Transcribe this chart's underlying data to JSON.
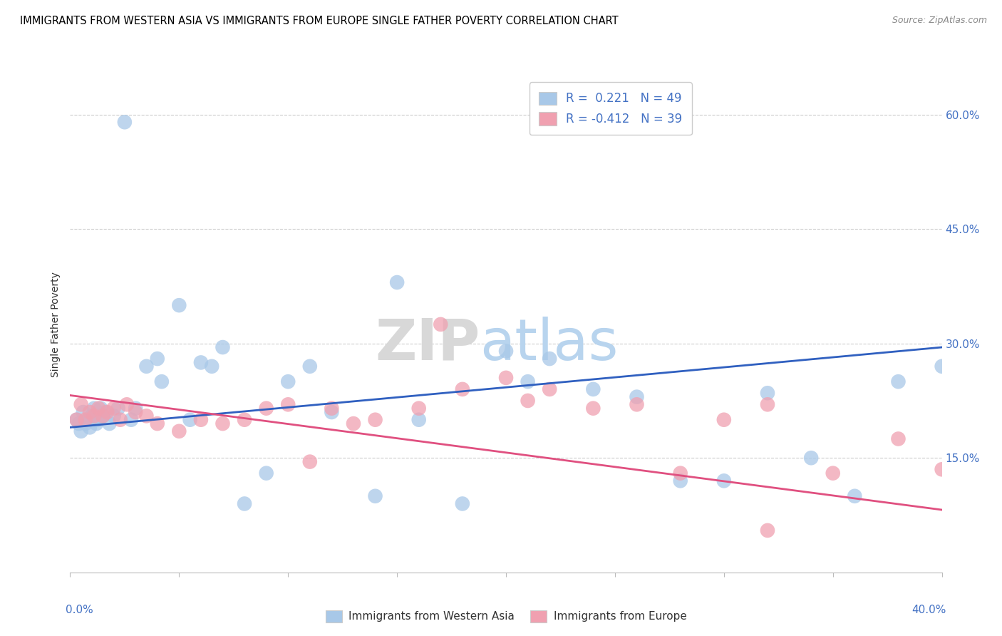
{
  "title": "IMMIGRANTS FROM WESTERN ASIA VS IMMIGRANTS FROM EUROPE SINGLE FATHER POVERTY CORRELATION CHART",
  "source": "Source: ZipAtlas.com",
  "ylabel": "Single Father Poverty",
  "ytick_vals": [
    0.15,
    0.3,
    0.45,
    0.6
  ],
  "xrange": [
    0.0,
    0.4
  ],
  "yrange": [
    0.0,
    0.65
  ],
  "legend_blue_R": "R =  0.221",
  "legend_blue_N": "N = 49",
  "legend_pink_R": "R = -0.412",
  "legend_pink_N": "N = 39",
  "color_blue": "#A8C8E8",
  "color_pink": "#F0A0B0",
  "color_blue_line": "#3060C0",
  "color_pink_line": "#E05080",
  "blue_scatter_x": [
    0.003,
    0.004,
    0.005,
    0.006,
    0.007,
    0.008,
    0.009,
    0.01,
    0.011,
    0.012,
    0.013,
    0.014,
    0.015,
    0.016,
    0.018,
    0.02,
    0.022,
    0.025,
    0.028,
    0.03,
    0.035,
    0.04,
    0.042,
    0.05,
    0.055,
    0.06,
    0.065,
    0.07,
    0.08,
    0.09,
    0.1,
    0.11,
    0.12,
    0.14,
    0.15,
    0.16,
    0.18,
    0.2,
    0.21,
    0.22,
    0.24,
    0.26,
    0.28,
    0.3,
    0.32,
    0.34,
    0.36,
    0.38,
    0.4
  ],
  "blue_scatter_y": [
    0.2,
    0.195,
    0.185,
    0.21,
    0.195,
    0.2,
    0.19,
    0.205,
    0.215,
    0.195,
    0.2,
    0.215,
    0.205,
    0.21,
    0.195,
    0.205,
    0.215,
    0.59,
    0.2,
    0.215,
    0.27,
    0.28,
    0.25,
    0.35,
    0.2,
    0.275,
    0.27,
    0.295,
    0.09,
    0.13,
    0.25,
    0.27,
    0.21,
    0.1,
    0.38,
    0.2,
    0.09,
    0.29,
    0.25,
    0.28,
    0.24,
    0.23,
    0.12,
    0.12,
    0.235,
    0.15,
    0.1,
    0.25,
    0.27
  ],
  "pink_scatter_x": [
    0.003,
    0.005,
    0.007,
    0.009,
    0.011,
    0.013,
    0.015,
    0.017,
    0.02,
    0.023,
    0.026,
    0.03,
    0.035,
    0.04,
    0.05,
    0.06,
    0.07,
    0.08,
    0.09,
    0.1,
    0.11,
    0.12,
    0.13,
    0.14,
    0.16,
    0.17,
    0.18,
    0.2,
    0.21,
    0.22,
    0.24,
    0.26,
    0.28,
    0.3,
    0.32,
    0.35,
    0.38,
    0.4,
    0.32
  ],
  "pink_scatter_y": [
    0.2,
    0.22,
    0.2,
    0.21,
    0.205,
    0.215,
    0.205,
    0.21,
    0.215,
    0.2,
    0.22,
    0.21,
    0.205,
    0.195,
    0.185,
    0.2,
    0.195,
    0.2,
    0.215,
    0.22,
    0.145,
    0.215,
    0.195,
    0.2,
    0.215,
    0.325,
    0.24,
    0.255,
    0.225,
    0.24,
    0.215,
    0.22,
    0.13,
    0.2,
    0.22,
    0.13,
    0.175,
    0.135,
    0.055
  ],
  "blue_line_x": [
    0.0,
    0.4
  ],
  "blue_line_y": [
    0.19,
    0.295
  ],
  "pink_line_x": [
    0.0,
    0.4
  ],
  "pink_line_y": [
    0.232,
    0.082
  ]
}
